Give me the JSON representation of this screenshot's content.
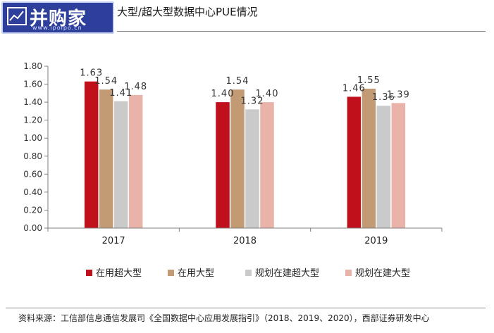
{
  "header": {
    "logo_text": "并购家",
    "logo_url": "www.ipoipo.cn",
    "title": "大型/超大型数据中心PUE情况"
  },
  "chart_data": {
    "type": "bar",
    "categories": [
      "2017",
      "2018",
      "2019"
    ],
    "series": [
      {
        "name": "在用超大型",
        "color": "#c0101c",
        "values": [
          1.63,
          1.4,
          1.46
        ],
        "labels": [
          "1.63",
          "1.40",
          "1.46"
        ]
      },
      {
        "name": "在用大型",
        "color": "#c29a73",
        "values": [
          1.54,
          1.54,
          1.55
        ],
        "labels": [
          "1.54",
          "1.54",
          "1.55"
        ]
      },
      {
        "name": "规划在建超大型",
        "color": "#cacaca",
        "values": [
          1.41,
          1.32,
          1.36
        ],
        "labels": [
          "1.41",
          "1.32",
          "1.36"
        ]
      },
      {
        "name": "规划在建大型",
        "color": "#eab3a9",
        "values": [
          1.48,
          1.4,
          1.39
        ],
        "labels": [
          "1.48",
          "1.40",
          "1.39"
        ]
      }
    ],
    "ylim": [
      0,
      1.8
    ],
    "yticks": [
      "0.00",
      "0.20",
      "0.40",
      "0.60",
      "0.80",
      "1.00",
      "1.20",
      "1.40",
      "1.60",
      "1.80"
    ],
    "legend_position": "bottom",
    "grid": false
  },
  "footer": {
    "source": "资料来源：工信部信息通信发展司《全国数据中心应用发展指引》（2018、2019、2020），西部证券研发中心"
  }
}
